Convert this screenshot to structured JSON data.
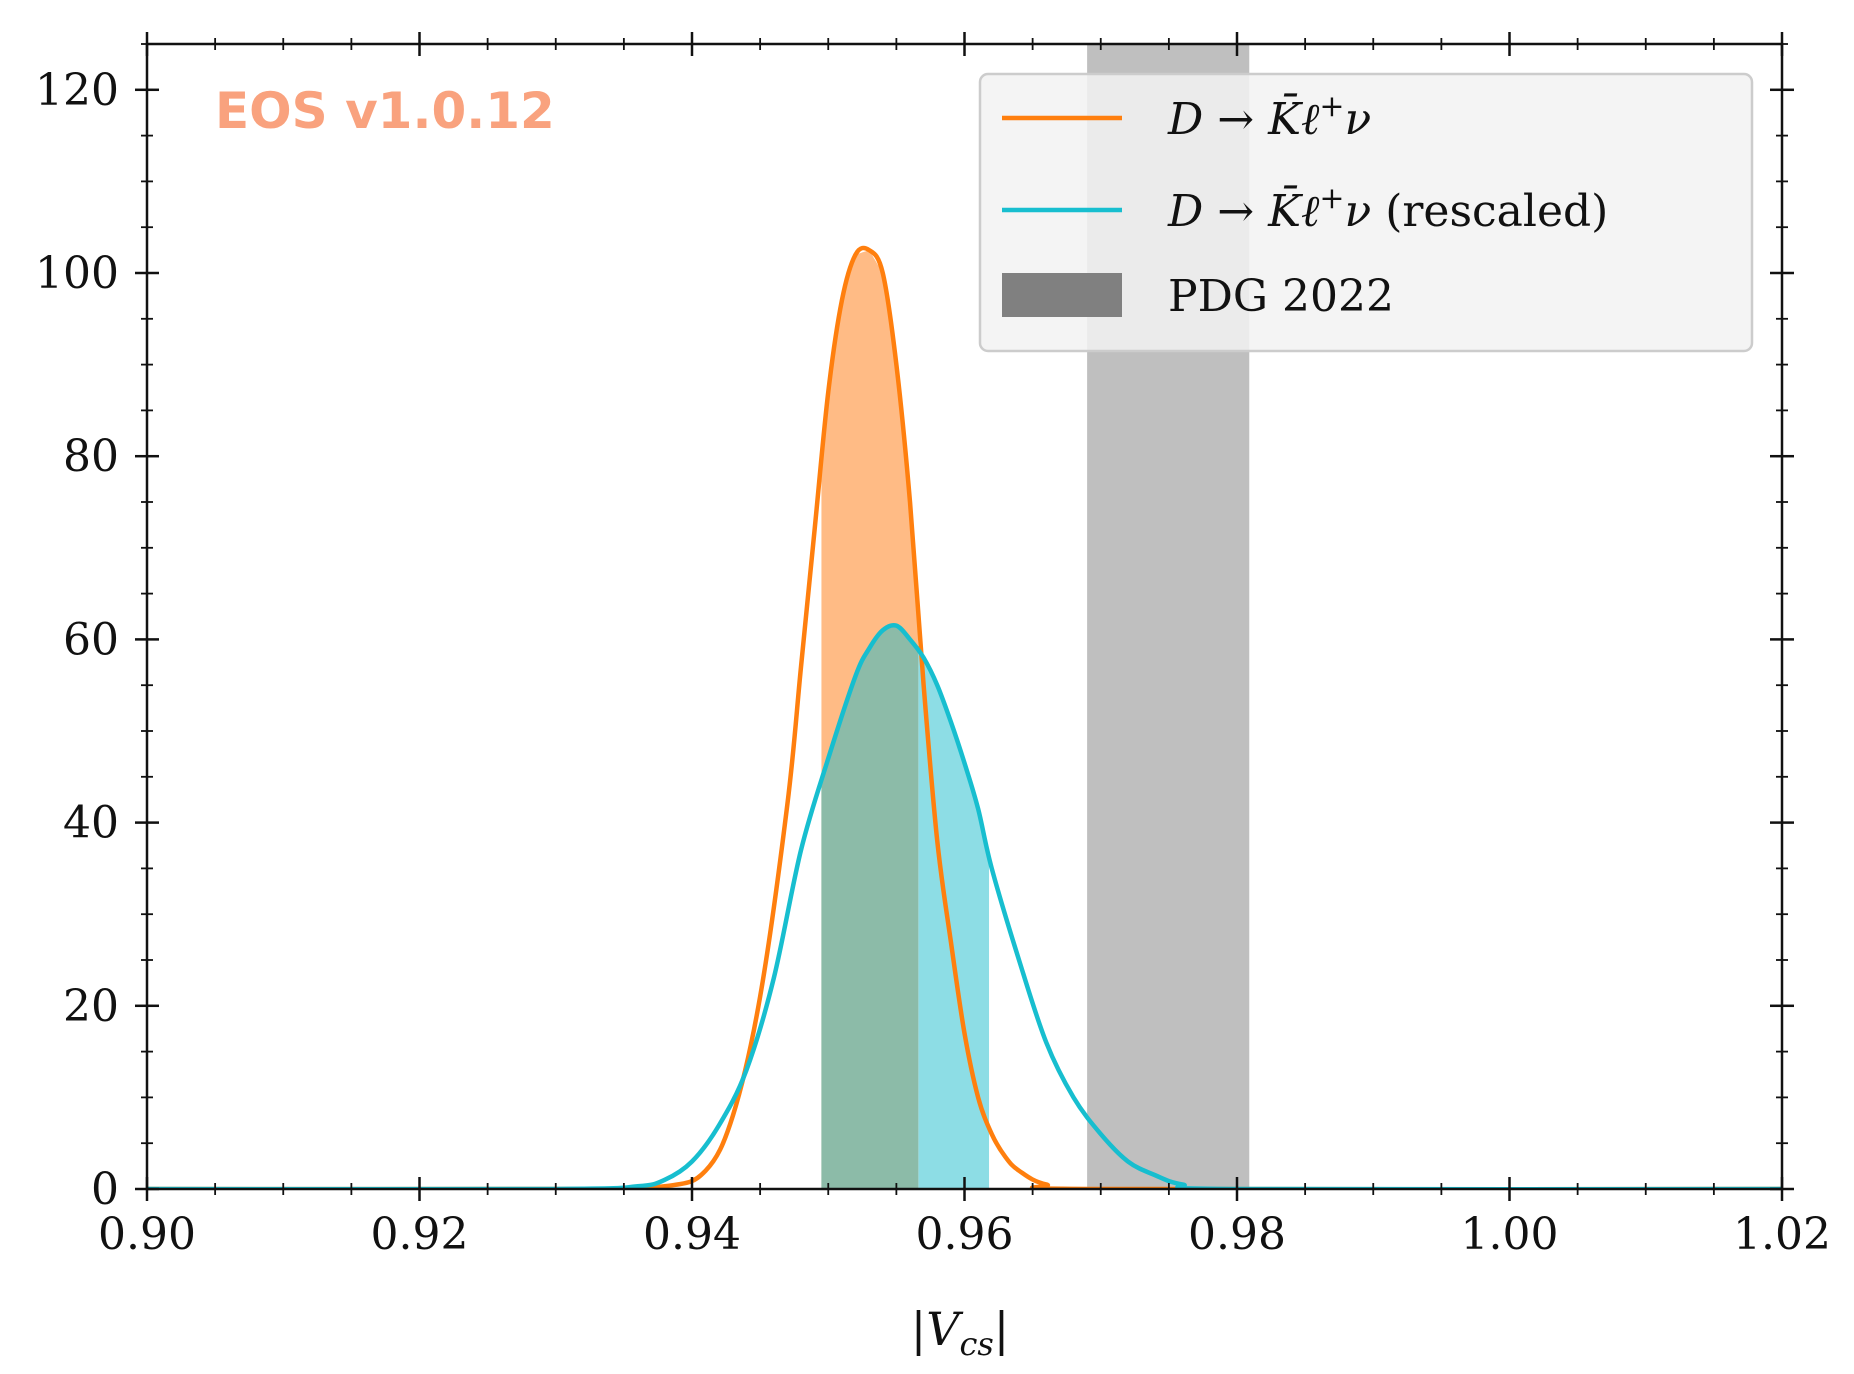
{
  "chart_data": {
    "type": "area",
    "watermark": "EOS v1.0.12",
    "xlabel": "|V_cs|",
    "ylabel": "",
    "xlim": [
      0.9,
      1.02
    ],
    "ylim": [
      0,
      125
    ],
    "x_ticks": [
      "0.90",
      "0.92",
      "0.94",
      "0.96",
      "0.98",
      "1.00",
      "1.02"
    ],
    "y_ticks": [
      "0",
      "20",
      "40",
      "60",
      "80",
      "100",
      "120"
    ],
    "legend_position": "top-right",
    "colors": {
      "orange": "#ff7f0e",
      "orange_fill": "#ffbb85",
      "cyan": "#17becf",
      "cyan_fill": "#8ddde5",
      "overlap_fill": "#8cbba8",
      "pdg_band": "#bfbfbf",
      "pdg_legend": "#808080",
      "watermark": "#f9a27e"
    },
    "series": [
      {
        "name": "D → K̄ℓ⁺ν",
        "color": "#ff7f0e",
        "x": [
          0.9,
          0.93,
          0.938,
          0.941,
          0.943,
          0.945,
          0.947,
          0.948,
          0.949,
          0.95,
          0.951,
          0.952,
          0.953,
          0.954,
          0.955,
          0.956,
          0.957,
          0.958,
          0.959,
          0.96,
          0.961,
          0.962,
          0.963,
          0.964,
          0.966,
          0.97,
          1.02
        ],
        "y": [
          0,
          0,
          0.3,
          2,
          8,
          21,
          42,
          57,
          72,
          87,
          97,
          102,
          102.5,
          100,
          90,
          75,
          55,
          38,
          27,
          17,
          10,
          6,
          3.5,
          2,
          0.5,
          0,
          0
        ],
        "hpd_interval": [
          0.9495,
          0.9566
        ]
      },
      {
        "name": "D → K̄ℓ⁺ν (rescaled)",
        "color": "#17becf",
        "x": [
          0.9,
          0.93,
          0.936,
          0.938,
          0.94,
          0.942,
          0.944,
          0.946,
          0.948,
          0.95,
          0.952,
          0.953,
          0.954,
          0.955,
          0.956,
          0.957,
          0.958,
          0.959,
          0.96,
          0.961,
          0.962,
          0.964,
          0.966,
          0.968,
          0.97,
          0.972,
          0.974,
          0.976,
          0.98,
          1.02
        ],
        "y": [
          0,
          0,
          0.3,
          1,
          3,
          7,
          13,
          23,
          37,
          47,
          56,
          59,
          61,
          61.5,
          60,
          58,
          55,
          51,
          46.5,
          41.5,
          35,
          25,
          16,
          10,
          6,
          3,
          1.5,
          0.5,
          0,
          0
        ],
        "hpd_interval": [
          0.9495,
          0.9618
        ]
      }
    ],
    "band": {
      "name": "PDG 2022",
      "x_range": [
        0.969,
        0.9809
      ]
    }
  }
}
